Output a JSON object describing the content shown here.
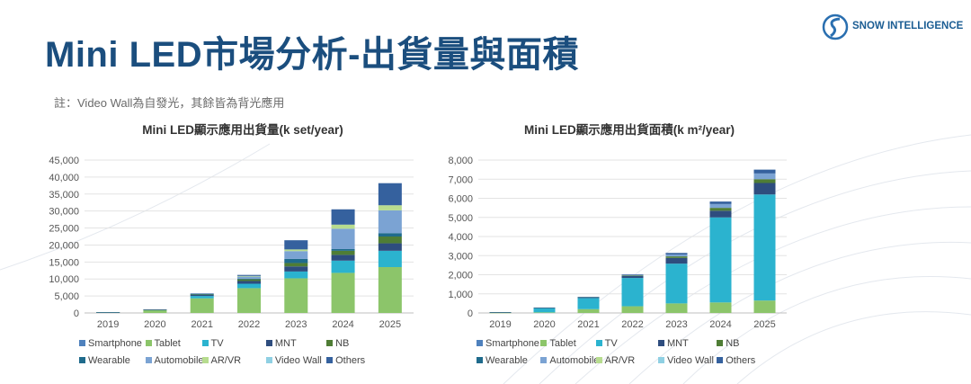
{
  "page": {
    "title": "Mini LED市場分析-出貨量與面積",
    "note": "註：Video Wall為自發光，其餘皆為背光應用",
    "logo_text": "SNOW INTELLIGENCE"
  },
  "colors": {
    "Smartphone": "#4f81bd",
    "Tablet": "#8cc56a",
    "TV": "#2bb3cf",
    "MNT": "#2e4d7e",
    "NB": "#4f7d35",
    "Wearable": "#1f6b8c",
    "Automobile": "#7ba3d3",
    "AR/VR": "#b7dc8f",
    "Video Wall": "#8fd0e3",
    "Others": "#35619e"
  },
  "chart_data": [
    {
      "type": "bar",
      "stacked": true,
      "title": "Mini LED顯示應用出貨量(k set/year)",
      "categories": [
        "2019",
        "2020",
        "2021",
        "2022",
        "2023",
        "2024",
        "2025"
      ],
      "ylim": [
        0,
        45000
      ],
      "yticks": [
        "0",
        "5,000",
        "10,000",
        "15,000",
        "20,000",
        "25,000",
        "30,000",
        "35,000",
        "40,000",
        "45,000"
      ],
      "ytick_values": [
        0,
        5000,
        10000,
        15000,
        20000,
        25000,
        30000,
        35000,
        40000,
        45000
      ],
      "grid": true,
      "legend_position": "bottom",
      "series": [
        {
          "name": "Smartphone",
          "values": [
            0,
            0,
            0,
            0,
            0,
            0,
            0
          ]
        },
        {
          "name": "Tablet",
          "values": [
            150,
            800,
            4300,
            7300,
            10200,
            11800,
            13500
          ]
        },
        {
          "name": "TV",
          "values": [
            50,
            100,
            700,
            1300,
            2000,
            3600,
            4800
          ]
        },
        {
          "name": "MNT",
          "values": [
            20,
            40,
            300,
            800,
            1500,
            1700,
            2200
          ]
        },
        {
          "name": "NB",
          "values": [
            20,
            50,
            200,
            500,
            1000,
            1200,
            2000
          ]
        },
        {
          "name": "Wearable",
          "values": [
            0,
            0,
            60,
            200,
            1200,
            500,
            1000
          ]
        },
        {
          "name": "Automobile",
          "values": [
            0,
            0,
            100,
            600,
            2300,
            6000,
            6700
          ]
        },
        {
          "name": "AR/VR",
          "values": [
            0,
            0,
            0,
            200,
            500,
            1200,
            1500
          ]
        },
        {
          "name": "Video Wall",
          "values": [
            0,
            0,
            0,
            0,
            0,
            0,
            0
          ]
        },
        {
          "name": "Others",
          "values": [
            10,
            20,
            100,
            300,
            2700,
            4500,
            6500
          ]
        }
      ]
    },
    {
      "type": "bar",
      "stacked": true,
      "title": "Mini LED顯示應用出貨面積(k m²/year)",
      "categories": [
        "2019",
        "2020",
        "2021",
        "2022",
        "2023",
        "2024",
        "2025"
      ],
      "ylim": [
        0,
        8000
      ],
      "yticks": [
        "0",
        "1,000",
        "2,000",
        "3,000",
        "4,000",
        "5,000",
        "6,000",
        "7,000",
        "8,000"
      ],
      "ytick_values": [
        0,
        1000,
        2000,
        3000,
        4000,
        5000,
        6000,
        7000,
        8000
      ],
      "grid": true,
      "legend_position": "bottom",
      "series": [
        {
          "name": "Smartphone",
          "values": [
            0,
            0,
            0,
            0,
            0,
            0,
            0
          ]
        },
        {
          "name": "Tablet",
          "values": [
            10,
            30,
            200,
            350,
            500,
            550,
            650
          ]
        },
        {
          "name": "TV",
          "values": [
            20,
            230,
            580,
            1480,
            2080,
            4450,
            5550
          ]
        },
        {
          "name": "MNT",
          "values": [
            5,
            10,
            30,
            100,
            300,
            350,
            600
          ]
        },
        {
          "name": "NB",
          "values": [
            2,
            5,
            15,
            30,
            80,
            150,
            200
          ]
        },
        {
          "name": "Wearable",
          "values": [
            0,
            0,
            0,
            0,
            0,
            0,
            0
          ]
        },
        {
          "name": "Automobile",
          "values": [
            0,
            5,
            10,
            30,
            100,
            200,
            300
          ]
        },
        {
          "name": "AR/VR",
          "values": [
            0,
            0,
            0,
            0,
            0,
            0,
            0
          ]
        },
        {
          "name": "Video Wall",
          "values": [
            0,
            0,
            0,
            0,
            0,
            0,
            0
          ]
        },
        {
          "name": "Others",
          "values": [
            2,
            5,
            10,
            30,
            80,
            130,
            200
          ]
        }
      ]
    }
  ]
}
